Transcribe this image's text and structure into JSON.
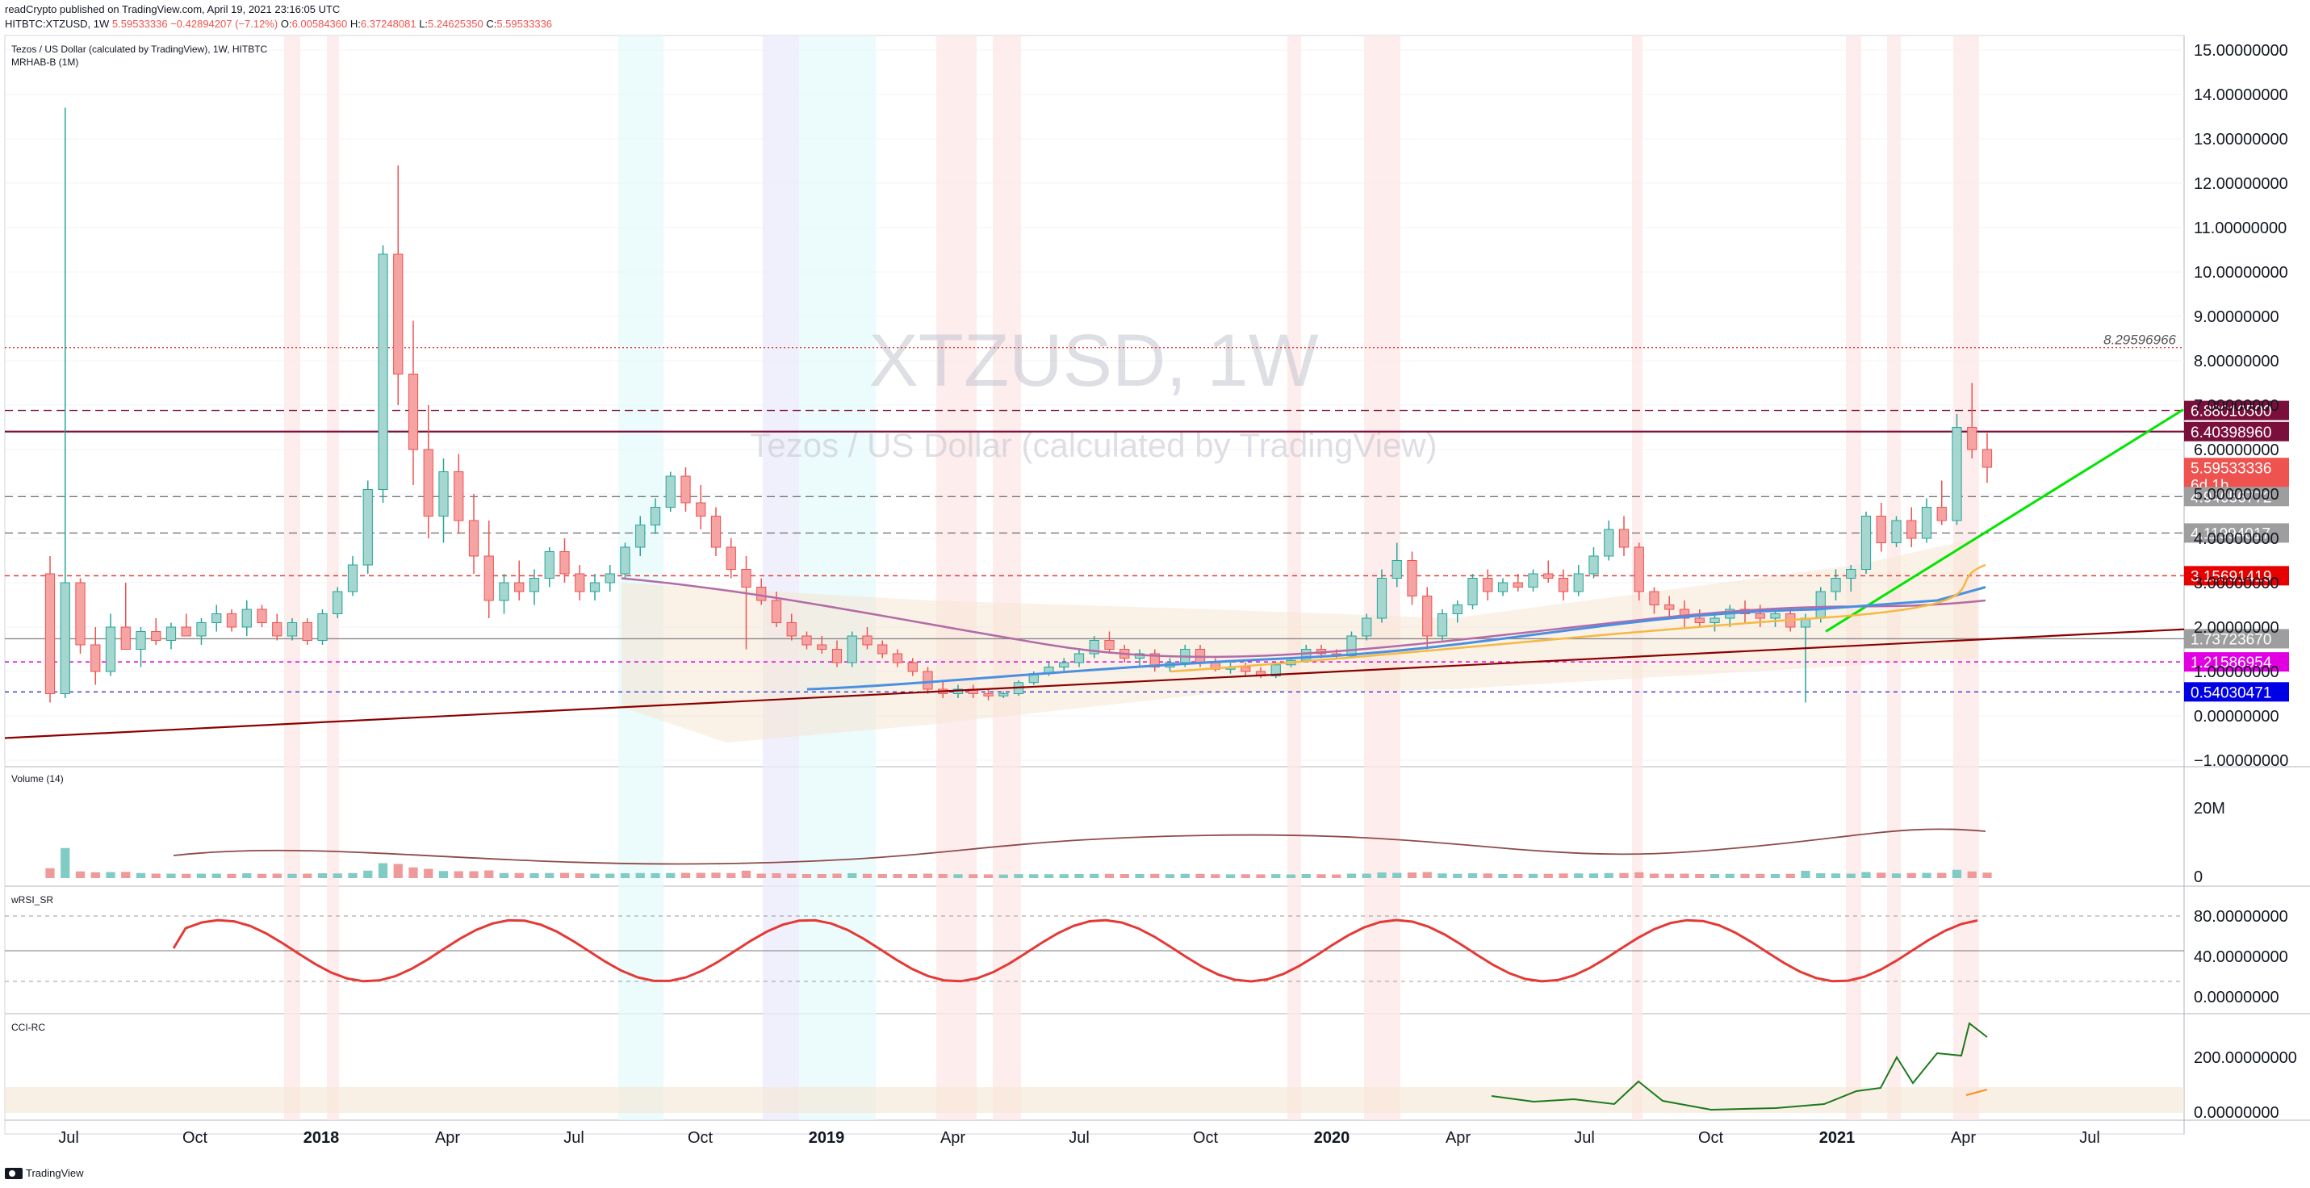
{
  "header": {
    "published": "readCrypto published on TradingView.com, April 19, 2021 23:16:05 UTC",
    "symbol": "HITBTC:XTZUSD, 1W",
    "quote": "5.59533336 −0.42894207 (−7.12%)",
    "o_label": "O:",
    "o_value": "6.00584360",
    "h_label": "H:",
    "h_value": "6.37248081",
    "l_label": "L:",
    "l_value": "5.24625350",
    "c_label": "C:",
    "c_value": "5.59533336"
  },
  "main_pane": {
    "title": "Tezos / US Dollar (calculated by TradingView), 1W, HITBTC",
    "indicator": "MRHAB-B (1M)",
    "watermark_big": "XTZUSD, 1W",
    "watermark_small": "Tezos / US Dollar (calculated by TradingView)"
  },
  "volume_pane": {
    "title": "Volume (14)",
    "ticks": [
      "20M",
      "0"
    ]
  },
  "rsi_pane": {
    "title": "wRSI_SR",
    "ticks": [
      "80.00000000",
      "40.00000000",
      "0.00000000"
    ]
  },
  "cci_pane": {
    "title": "CCI-RC",
    "ticks": [
      "200.00000000",
      "0.00000000"
    ]
  },
  "footer": {
    "brand": "TradingView"
  },
  "colors": {
    "up": "#26a69a",
    "down": "#ef5350",
    "grid": "#f0f3fa",
    "accent_green": "#00e600",
    "trend": "#8b0000"
  },
  "chart_data": {
    "type": "candlestick",
    "x_labels": [
      "Jul",
      "Oct",
      "2018",
      "Apr",
      "Jul",
      "Oct",
      "2019",
      "Apr",
      "Jul",
      "Oct",
      "2020",
      "Apr",
      "Jul",
      "Oct",
      "2021",
      "Apr",
      "Jul"
    ],
    "y_ticks": [
      "15.00000000",
      "14.00000000",
      "13.00000000",
      "12.00000000",
      "11.00000000",
      "10.00000000",
      "9.00000000",
      "8.00000000",
      "7.00000000",
      "6.00000000",
      "5.00000000",
      "4.00000000",
      "3.00000000",
      "2.00000000",
      "1.00000000",
      "0.00000000",
      "−1.00000000"
    ],
    "ylim": [
      -1,
      15
    ],
    "levels": [
      {
        "value": 8.29596966,
        "label": "8.29596966",
        "style": "dotted-red",
        "text_only": true
      },
      {
        "value": 6.880105,
        "label": "6.88010500",
        "style": "dashed",
        "badge": "#7b0f3c"
      },
      {
        "value": 6.4039896,
        "label": "6.40398960",
        "style": "solid-purple",
        "badge": "#7b0f3c"
      },
      {
        "value": 5.59533336,
        "label": "5.59533336",
        "sub": "6d 1h",
        "badge": "#ef5350"
      },
      {
        "value": 4.94056772,
        "label": "4.94056772",
        "style": "dashed",
        "badge": "#9e9e9e"
      },
      {
        "value": 4.11994017,
        "label": "4.11994017",
        "style": "dashed",
        "badge": "#9e9e9e"
      },
      {
        "value": 3.15691419,
        "label": "3.15691419",
        "style": "dashed-red",
        "badge": "#e60000"
      },
      {
        "value": 1.7372367,
        "label": "1.73723670",
        "style": "solid-gray",
        "badge": "#9e9e9e"
      },
      {
        "value": 1.21586954,
        "label": "1.21586954",
        "style": "dashed-magenta",
        "badge": "#e100e1"
      },
      {
        "value": 0.54030471,
        "label": "0.54030471",
        "style": "dashed-blue",
        "badge": "#0000e6"
      }
    ],
    "last_close": 5.59533336,
    "ohlc_weekly": [
      [
        3.2,
        3.6,
        0.3,
        0.5
      ],
      [
        0.5,
        13.7,
        0.4,
        3.0
      ],
      [
        3.0,
        3.1,
        1.4,
        1.6
      ],
      [
        1.6,
        2.0,
        0.7,
        1.0
      ],
      [
        1.0,
        2.3,
        0.9,
        2.0
      ],
      [
        2.0,
        3.0,
        1.5,
        1.5
      ],
      [
        1.5,
        2.0,
        1.1,
        1.9
      ],
      [
        1.9,
        2.2,
        1.6,
        1.7
      ],
      [
        1.7,
        2.1,
        1.5,
        2.0
      ],
      [
        2.0,
        2.3,
        1.8,
        1.8
      ],
      [
        1.8,
        2.2,
        1.6,
        2.1
      ],
      [
        2.1,
        2.5,
        1.9,
        2.3
      ],
      [
        2.3,
        2.4,
        1.9,
        2.0
      ],
      [
        2.0,
        2.6,
        1.8,
        2.4
      ],
      [
        2.4,
        2.5,
        2.0,
        2.1
      ],
      [
        2.1,
        2.3,
        1.7,
        1.8
      ],
      [
        1.8,
        2.2,
        1.7,
        2.1
      ],
      [
        2.1,
        2.2,
        1.6,
        1.7
      ],
      [
        1.7,
        2.4,
        1.6,
        2.3
      ],
      [
        2.3,
        2.9,
        2.2,
        2.8
      ],
      [
        2.8,
        3.6,
        2.7,
        3.4
      ],
      [
        3.4,
        5.3,
        3.2,
        5.1
      ],
      [
        5.1,
        10.6,
        4.8,
        10.4
      ],
      [
        10.4,
        12.4,
        7.0,
        7.7
      ],
      [
        7.7,
        8.9,
        5.2,
        6.0
      ],
      [
        6.0,
        7.0,
        4.0,
        4.5
      ],
      [
        4.5,
        5.8,
        3.9,
        5.5
      ],
      [
        5.5,
        5.9,
        4.1,
        4.4
      ],
      [
        4.4,
        5.0,
        3.2,
        3.6
      ],
      [
        3.6,
        4.4,
        2.2,
        2.6
      ],
      [
        2.6,
        3.2,
        2.3,
        3.0
      ],
      [
        3.0,
        3.5,
        2.6,
        2.8
      ],
      [
        2.8,
        3.3,
        2.5,
        3.1
      ],
      [
        3.1,
        3.8,
        2.9,
        3.7
      ],
      [
        3.7,
        4.0,
        3.0,
        3.2
      ],
      [
        3.2,
        3.4,
        2.6,
        2.8
      ],
      [
        2.8,
        3.2,
        2.6,
        3.0
      ],
      [
        3.0,
        3.4,
        2.8,
        3.2
      ],
      [
        3.2,
        3.9,
        3.1,
        3.8
      ],
      [
        3.8,
        4.5,
        3.6,
        4.3
      ],
      [
        4.3,
        4.9,
        4.1,
        4.7
      ],
      [
        4.7,
        5.5,
        4.6,
        5.4
      ],
      [
        5.4,
        5.6,
        4.6,
        4.8
      ],
      [
        4.8,
        5.2,
        4.2,
        4.5
      ],
      [
        4.5,
        4.7,
        3.6,
        3.8
      ],
      [
        3.8,
        4.0,
        3.1,
        3.3
      ],
      [
        3.3,
        3.6,
        1.5,
        2.9
      ],
      [
        2.9,
        3.1,
        2.5,
        2.6
      ],
      [
        2.6,
        2.8,
        2.0,
        2.1
      ],
      [
        2.1,
        2.3,
        1.7,
        1.8
      ],
      [
        1.8,
        1.9,
        1.5,
        1.6
      ],
      [
        1.6,
        1.8,
        1.4,
        1.5
      ],
      [
        1.5,
        1.7,
        1.1,
        1.2
      ],
      [
        1.2,
        1.9,
        1.1,
        1.8
      ],
      [
        1.8,
        2.0,
        1.5,
        1.6
      ],
      [
        1.6,
        1.7,
        1.3,
        1.4
      ],
      [
        1.4,
        1.5,
        1.1,
        1.2
      ],
      [
        1.2,
        1.3,
        0.9,
        1.0
      ],
      [
        1.0,
        1.1,
        0.5,
        0.6
      ],
      [
        0.6,
        0.8,
        0.4,
        0.5
      ],
      [
        0.5,
        0.7,
        0.4,
        0.6
      ],
      [
        0.6,
        0.7,
        0.4,
        0.5
      ],
      [
        0.5,
        0.6,
        0.35,
        0.45
      ],
      [
        0.45,
        0.55,
        0.4,
        0.5
      ],
      [
        0.5,
        0.8,
        0.45,
        0.75
      ],
      [
        0.75,
        1.0,
        0.7,
        0.95
      ],
      [
        0.95,
        1.2,
        0.9,
        1.1
      ],
      [
        1.1,
        1.3,
        1.0,
        1.2
      ],
      [
        1.2,
        1.5,
        1.1,
        1.4
      ],
      [
        1.4,
        1.8,
        1.3,
        1.7
      ],
      [
        1.7,
        1.9,
        1.4,
        1.5
      ],
      [
        1.5,
        1.6,
        1.2,
        1.3
      ],
      [
        1.3,
        1.5,
        1.1,
        1.4
      ],
      [
        1.4,
        1.5,
        1.0,
        1.1
      ],
      [
        1.1,
        1.3,
        1.0,
        1.2
      ],
      [
        1.2,
        1.6,
        1.1,
        1.5
      ],
      [
        1.5,
        1.6,
        1.1,
        1.2
      ],
      [
        1.2,
        1.3,
        1.0,
        1.05
      ],
      [
        1.05,
        1.2,
        0.95,
        1.1
      ],
      [
        1.1,
        1.2,
        0.9,
        1.0
      ],
      [
        1.0,
        1.1,
        0.85,
        0.9
      ],
      [
        0.9,
        1.2,
        0.85,
        1.15
      ],
      [
        1.15,
        1.3,
        1.1,
        1.25
      ],
      [
        1.25,
        1.6,
        1.2,
        1.5
      ],
      [
        1.5,
        1.6,
        1.3,
        1.4
      ],
      [
        1.4,
        1.5,
        1.3,
        1.35
      ],
      [
        1.35,
        1.9,
        1.3,
        1.8
      ],
      [
        1.8,
        2.3,
        1.7,
        2.2
      ],
      [
        2.2,
        3.3,
        2.1,
        3.1
      ],
      [
        3.1,
        3.9,
        2.9,
        3.5
      ],
      [
        3.5,
        3.7,
        2.5,
        2.7
      ],
      [
        2.7,
        2.9,
        1.5,
        1.8
      ],
      [
        1.8,
        2.4,
        1.7,
        2.3
      ],
      [
        2.3,
        2.6,
        2.1,
        2.5
      ],
      [
        2.5,
        3.2,
        2.4,
        3.1
      ],
      [
        3.1,
        3.3,
        2.6,
        2.8
      ],
      [
        2.8,
        3.1,
        2.7,
        3.0
      ],
      [
        3.0,
        3.2,
        2.8,
        2.9
      ],
      [
        2.9,
        3.3,
        2.8,
        3.2
      ],
      [
        3.2,
        3.5,
        3.0,
        3.1
      ],
      [
        3.1,
        3.3,
        2.6,
        2.8
      ],
      [
        2.8,
        3.4,
        2.7,
        3.2
      ],
      [
        3.2,
        3.8,
        3.1,
        3.6
      ],
      [
        3.6,
        4.4,
        3.5,
        4.2
      ],
      [
        4.2,
        4.5,
        3.6,
        3.8
      ],
      [
        3.8,
        3.9,
        2.6,
        2.8
      ],
      [
        2.8,
        2.9,
        2.3,
        2.5
      ],
      [
        2.5,
        2.7,
        2.2,
        2.4
      ],
      [
        2.4,
        2.6,
        2.0,
        2.2
      ],
      [
        2.2,
        2.4,
        2.0,
        2.1
      ],
      [
        2.1,
        2.3,
        1.9,
        2.2
      ],
      [
        2.2,
        2.5,
        2.0,
        2.4
      ],
      [
        2.4,
        2.6,
        2.1,
        2.3
      ],
      [
        2.3,
        2.5,
        2.0,
        2.2
      ],
      [
        2.2,
        2.4,
        2.0,
        2.3
      ],
      [
        2.3,
        2.4,
        1.9,
        2.0
      ],
      [
        2.0,
        2.3,
        0.3,
        2.2
      ],
      [
        2.2,
        2.9,
        2.1,
        2.8
      ],
      [
        2.8,
        3.3,
        2.6,
        3.1
      ],
      [
        3.1,
        3.4,
        2.8,
        3.3
      ],
      [
        3.3,
        4.6,
        3.2,
        4.5
      ],
      [
        4.5,
        4.8,
        3.7,
        3.9
      ],
      [
        3.9,
        4.5,
        3.8,
        4.4
      ],
      [
        4.4,
        4.7,
        3.8,
        4.0
      ],
      [
        4.0,
        4.9,
        3.9,
        4.7
      ],
      [
        4.7,
        5.3,
        4.3,
        4.4
      ],
      [
        4.4,
        6.8,
        4.3,
        6.5
      ],
      [
        6.5,
        7.5,
        5.8,
        6.0
      ],
      [
        6.0,
        6.37,
        5.25,
        5.6
      ]
    ]
  }
}
